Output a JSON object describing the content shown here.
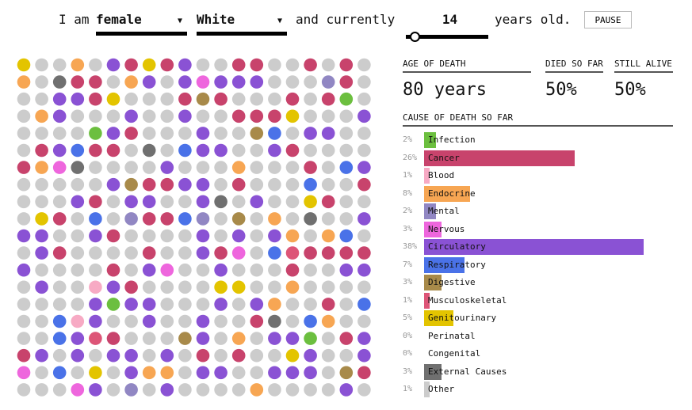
{
  "header": {
    "prefix": "I am",
    "sex": "female",
    "race": "White",
    "middle": "and currently",
    "age": "14",
    "suffix": "years old.",
    "pause_label": "PAUSE",
    "age_progress": 0.14
  },
  "stats": {
    "age_of_death_label": "AGE OF DEATH",
    "age_of_death": "80 years",
    "died_label": "DIED SO FAR",
    "died": "50%",
    "alive_label": "STILL ALIVE",
    "alive": "50%"
  },
  "causes_title": "CAUSE OF DEATH SO FAR",
  "alive_color": "#cccccc",
  "causes": [
    {
      "name": "Infection",
      "pct": "2%",
      "value": 2,
      "color": "#6cbf3f"
    },
    {
      "name": "Cancer",
      "pct": "26%",
      "value": 26,
      "color": "#c8436c"
    },
    {
      "name": "Blood",
      "pct": "1%",
      "value": 1,
      "color": "#f7aac4"
    },
    {
      "name": "Endocrine",
      "pct": "8%",
      "value": 8,
      "color": "#f7a653"
    },
    {
      "name": "Mental",
      "pct": "2%",
      "value": 2,
      "color": "#9187c3"
    },
    {
      "name": "Nervous",
      "pct": "3%",
      "value": 3,
      "color": "#ee66dd"
    },
    {
      "name": "Circulatory",
      "pct": "38%",
      "value": 38,
      "color": "#8a52d4"
    },
    {
      "name": "Respiratory",
      "pct": "7%",
      "value": 7,
      "color": "#4a72e8"
    },
    {
      "name": "Digestive",
      "pct": "3%",
      "value": 3,
      "color": "#a88a4a"
    },
    {
      "name": "Musculoskeletal",
      "pct": "1%",
      "value": 1,
      "color": "#dd5577"
    },
    {
      "name": "Genitourinary",
      "pct": "5%",
      "value": 5,
      "color": "#e3c400"
    },
    {
      "name": "Perinatal",
      "pct": "0%",
      "value": 0,
      "color": "#888888"
    },
    {
      "name": "Congenital",
      "pct": "0%",
      "value": 0,
      "color": "#888888"
    },
    {
      "name": "External Causes",
      "pct": "3%",
      "value": 3,
      "color": "#707070"
    },
    {
      "name": "Other",
      "pct": "1%",
      "value": 1,
      "color": "#cccccc"
    }
  ]
}
